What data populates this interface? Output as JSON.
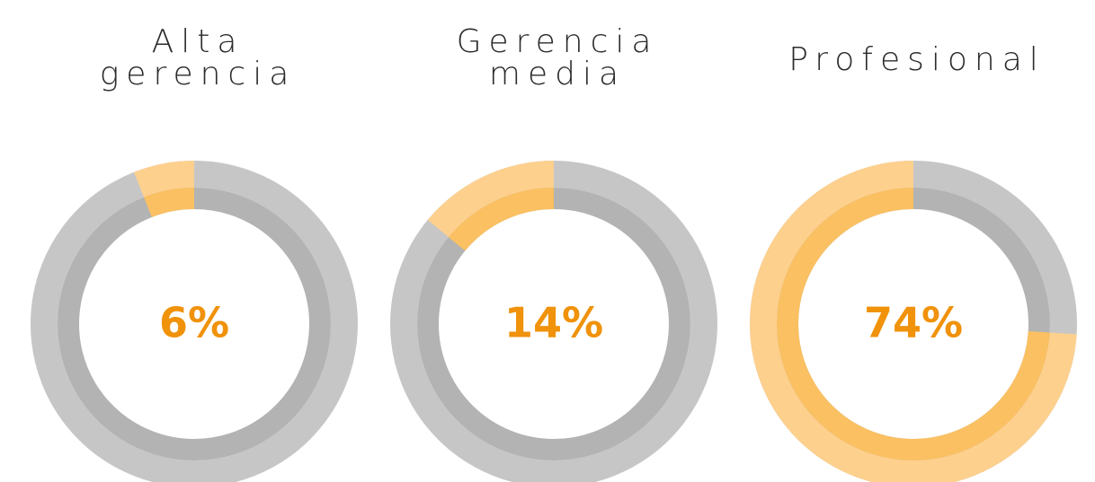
{
  "chart_data": [
    {
      "type": "donut",
      "title": [
        "Alta",
        "gerencia"
      ],
      "values": [
        6
      ],
      "value_labels": [
        "6%"
      ],
      "color": "#fdd08e"
    },
    {
      "type": "donut",
      "title": [
        "Gerencia",
        "media"
      ],
      "values": [
        14
      ],
      "value_labels": [
        "14%"
      ],
      "color": "#fdd08e"
    },
    {
      "type": "donut",
      "title": [
        "Profesional"
      ],
      "values": [
        74
      ],
      "value_labels": [
        "74%"
      ],
      "color": "#fdd08e"
    }
  ]
}
